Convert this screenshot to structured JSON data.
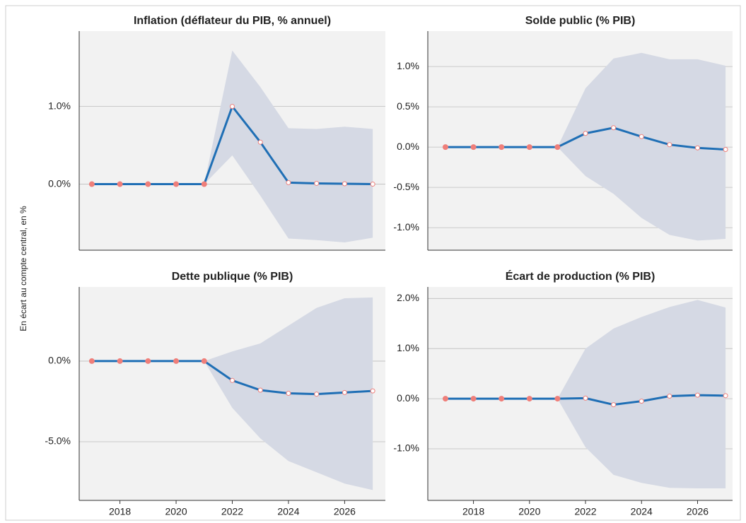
{
  "ylabel": "En écart au compte central, en %",
  "chart_data": [
    {
      "type": "line",
      "title": "Inflation (déflateur du PIB, % annuel)",
      "x": [
        2017,
        2018,
        2019,
        2020,
        2021,
        2022,
        2023,
        2024,
        2025,
        2026,
        2027
      ],
      "values": [
        0,
        0,
        0,
        0,
        0,
        1.0,
        0.54,
        0.02,
        0.01,
        0.005,
        0.0
      ],
      "upper": [
        null,
        null,
        null,
        null,
        0,
        1.72,
        1.25,
        0.72,
        0.71,
        0.74,
        0.71
      ],
      "lower": [
        null,
        null,
        null,
        null,
        0,
        0.37,
        -0.15,
        -0.7,
        -0.72,
        -0.75,
        -0.69
      ],
      "xlim": [
        2016.55,
        2027.45
      ],
      "ylim": [
        -0.85,
        1.97
      ],
      "yticks": [
        {
          "value": 0,
          "label": "0.0%"
        },
        {
          "value": 1,
          "label": "1.0%"
        }
      ],
      "color": "#1f6fb5",
      "band_color": "#d5d9e4",
      "marker_color": "#ef7f7a",
      "grid": true
    },
    {
      "type": "line",
      "title": "Solde public (% PIB)",
      "x": [
        2017,
        2018,
        2019,
        2020,
        2021,
        2022,
        2023,
        2024,
        2025,
        2026,
        2027
      ],
      "values": [
        0,
        0,
        0,
        0,
        0,
        0.17,
        0.24,
        0.13,
        0.03,
        -0.01,
        -0.03
      ],
      "upper": [
        null,
        null,
        null,
        null,
        0,
        0.73,
        1.1,
        1.17,
        1.09,
        1.09,
        1.01
      ],
      "lower": [
        null,
        null,
        null,
        null,
        0,
        -0.36,
        -0.58,
        -0.88,
        -1.09,
        -1.16,
        -1.14
      ],
      "xlim": [
        2016.37,
        2027.25
      ],
      "ylim": [
        -1.28,
        1.44
      ],
      "yticks": [
        {
          "value": -1,
          "label": "-1.0%"
        },
        {
          "value": -0.5,
          "label": "-0.5%"
        },
        {
          "value": 0,
          "label": "0.0%"
        },
        {
          "value": 0.5,
          "label": "0.5%"
        },
        {
          "value": 1,
          "label": "1.0%"
        }
      ],
      "color": "#1f6fb5",
      "band_color": "#d5d9e4",
      "marker_color": "#ef7f7a",
      "grid": true
    },
    {
      "type": "line",
      "title": "Dette publique (% PIB)",
      "x": [
        2017,
        2018,
        2019,
        2020,
        2021,
        2022,
        2023,
        2024,
        2025,
        2026,
        2027
      ],
      "values": [
        0,
        0,
        0,
        0,
        0,
        -1.2,
        -1.8,
        -2.0,
        -2.05,
        -1.95,
        -1.85
      ],
      "upper": [
        null,
        null,
        null,
        null,
        0,
        0.6,
        1.1,
        2.2,
        3.3,
        3.9,
        3.95
      ],
      "lower": [
        null,
        null,
        null,
        null,
        0,
        -2.9,
        -4.8,
        -6.2,
        -6.9,
        -7.6,
        -8.0
      ],
      "xlim": [
        2016.55,
        2027.45
      ],
      "ylim": [
        -8.64,
        4.6
      ],
      "xticks": [
        2018,
        2020,
        2022,
        2024,
        2026
      ],
      "yticks": [
        {
          "value": -5,
          "label": "-5.0%"
        },
        {
          "value": 0,
          "label": "0.0%"
        }
      ],
      "color": "#1f6fb5",
      "band_color": "#d5d9e4",
      "marker_color": "#ef7f7a",
      "grid": true
    },
    {
      "type": "line",
      "title": "Écart de production (% PIB)",
      "x": [
        2017,
        2018,
        2019,
        2020,
        2021,
        2022,
        2023,
        2024,
        2025,
        2026,
        2027
      ],
      "values": [
        0,
        0,
        0,
        0,
        0,
        0.01,
        -0.12,
        -0.05,
        0.05,
        0.07,
        0.06
      ],
      "upper": [
        null,
        null,
        null,
        null,
        0,
        1.0,
        1.4,
        1.63,
        1.83,
        1.97,
        1.82
      ],
      "lower": [
        null,
        null,
        null,
        null,
        0,
        -0.97,
        -1.52,
        -1.68,
        -1.78,
        -1.79,
        -1.79
      ],
      "xlim": [
        2016.37,
        2027.25
      ],
      "ylim": [
        -2.03,
        2.23
      ],
      "xticks": [
        2018,
        2020,
        2022,
        2024,
        2026
      ],
      "yticks": [
        {
          "value": -1,
          "label": "-1.0%"
        },
        {
          "value": 0,
          "label": "0.0%"
        },
        {
          "value": 1,
          "label": "1.0%"
        },
        {
          "value": 2,
          "label": "2.0%"
        }
      ],
      "color": "#1f6fb5",
      "band_color": "#d5d9e4",
      "marker_color": "#ef7f7a",
      "grid": true
    }
  ]
}
